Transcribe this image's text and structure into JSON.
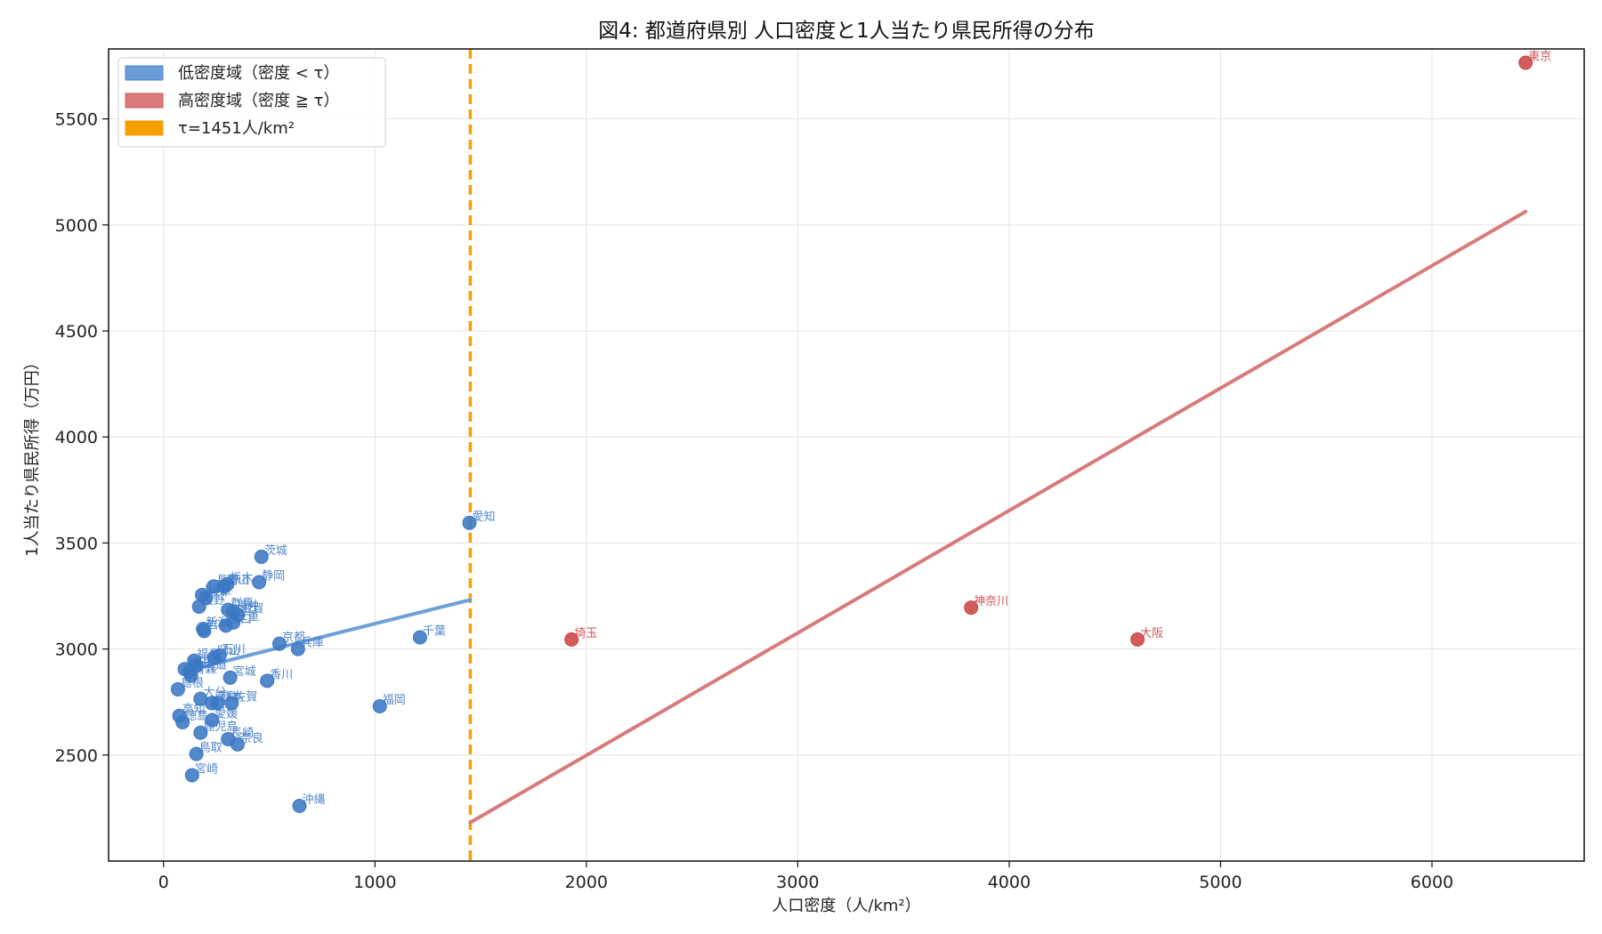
{
  "chart_data": {
    "type": "scatter",
    "title": "図4: 都道府県別 人口密度と1人当たり県民所得の分布",
    "xlabel": "人口密度（人/km²）",
    "ylabel": "1人当たり県民所得（万円）",
    "xlim": [
      -260,
      6720
    ],
    "ylim": [
      2000,
      5830
    ],
    "xticks": [
      0,
      1000,
      2000,
      3000,
      4000,
      5000,
      6000
    ],
    "yticks": [
      2500,
      3000,
      3500,
      4000,
      4500,
      5000,
      5500
    ],
    "grid": true,
    "legend_position": "top-left",
    "legend": [
      {
        "label": "低密度域（密度 < τ）",
        "color": "#4a86cf"
      },
      {
        "label": "高密度域（密度 ≧ τ）",
        "color": "#d15b5b"
      },
      {
        "label": "τ=1451人/km²",
        "color": "#f5a000"
      }
    ],
    "threshold": {
      "x": 1451,
      "label": "τ=1451人/km²"
    },
    "colors": {
      "low": "#3b78c4",
      "high": "#cc4444",
      "low_fit": "#6e9fd6",
      "high_fit": "#d97a7a",
      "threshold": "#f5a000"
    },
    "fit_lines": [
      {
        "group": "low",
        "x": [
          100,
          1451
        ],
        "y": [
          2895,
          3232
        ]
      },
      {
        "group": "high",
        "x": [
          1451,
          6443
        ],
        "y": [
          2182,
          5063
        ]
      }
    ],
    "series": [
      {
        "name": "低密度域（密度 < τ）",
        "group": "low",
        "points": [
          {
            "x": 1447,
            "y": 3595,
            "label": "愛知"
          },
          {
            "x": 463,
            "y": 3435,
            "label": "茨城"
          },
          {
            "x": 452,
            "y": 3315,
            "label": "静岡"
          },
          {
            "x": 301,
            "y": 3305,
            "label": "栃木"
          },
          {
            "x": 285,
            "y": 3295,
            "label": "富山"
          },
          {
            "x": 237,
            "y": 3295,
            "label": "長野"
          },
          {
            "x": 182,
            "y": 3255,
            "label": "山梨"
          },
          {
            "x": 200,
            "y": 3240,
            "label": "岐阜"
          },
          {
            "x": 168,
            "y": 3200,
            "label": "長野"
          },
          {
            "x": 305,
            "y": 3185,
            "label": "群馬"
          },
          {
            "x": 330,
            "y": 3175,
            "label": "福井"
          },
          {
            "x": 352,
            "y": 3160,
            "label": "滋賀"
          },
          {
            "x": 295,
            "y": 3110,
            "label": "山口"
          },
          {
            "x": 330,
            "y": 3125,
            "label": "三重"
          },
          {
            "x": 187,
            "y": 3095,
            "label": "新潟"
          },
          {
            "x": 192,
            "y": 3085,
            "label": "岩手"
          },
          {
            "x": 548,
            "y": 3025,
            "label": "京都"
          },
          {
            "x": 636,
            "y": 3000,
            "label": "兵庫"
          },
          {
            "x": 1213,
            "y": 3055,
            "label": "千葉"
          },
          {
            "x": 265,
            "y": 2970,
            "label": "石川"
          },
          {
            "x": 240,
            "y": 2960,
            "label": "岡山"
          },
          {
            "x": 145,
            "y": 2945,
            "label": "福島"
          },
          {
            "x": 100,
            "y": 2905,
            "label": "秋田"
          },
          {
            "x": 155,
            "y": 2920,
            "label": "山形"
          },
          {
            "x": 122,
            "y": 2895,
            "label": "北海道"
          },
          {
            "x": 130,
            "y": 2875,
            "label": "青森"
          },
          {
            "x": 315,
            "y": 2865,
            "label": "宮城"
          },
          {
            "x": 490,
            "y": 2850,
            "label": "香川"
          },
          {
            "x": 68,
            "y": 2810,
            "label": "島根"
          },
          {
            "x": 175,
            "y": 2765,
            "label": "大分"
          },
          {
            "x": 228,
            "y": 2745,
            "label": "広島"
          },
          {
            "x": 255,
            "y": 2745,
            "label": "熊本"
          },
          {
            "x": 322,
            "y": 2745,
            "label": "佐賀"
          },
          {
            "x": 1023,
            "y": 2730,
            "label": "福岡"
          },
          {
            "x": 75,
            "y": 2685,
            "label": "高知"
          },
          {
            "x": 90,
            "y": 2655,
            "label": "徳島"
          },
          {
            "x": 230,
            "y": 2665,
            "label": "愛媛"
          },
          {
            "x": 175,
            "y": 2605,
            "label": "鹿児島"
          },
          {
            "x": 305,
            "y": 2575,
            "label": "長崎"
          },
          {
            "x": 350,
            "y": 2550,
            "label": "奈良"
          },
          {
            "x": 155,
            "y": 2505,
            "label": "鳥取"
          },
          {
            "x": 135,
            "y": 2405,
            "label": "宮崎"
          },
          {
            "x": 643,
            "y": 2260,
            "label": "沖縄"
          }
        ]
      },
      {
        "name": "高密度域（密度 ≧ τ）",
        "group": "high",
        "points": [
          {
            "x": 6443,
            "y": 5765,
            "label": "東京"
          },
          {
            "x": 3820,
            "y": 3195,
            "label": "神奈川"
          },
          {
            "x": 4607,
            "y": 3045,
            "label": "大阪"
          },
          {
            "x": 1930,
            "y": 3045,
            "label": "埼玉"
          }
        ]
      }
    ]
  }
}
